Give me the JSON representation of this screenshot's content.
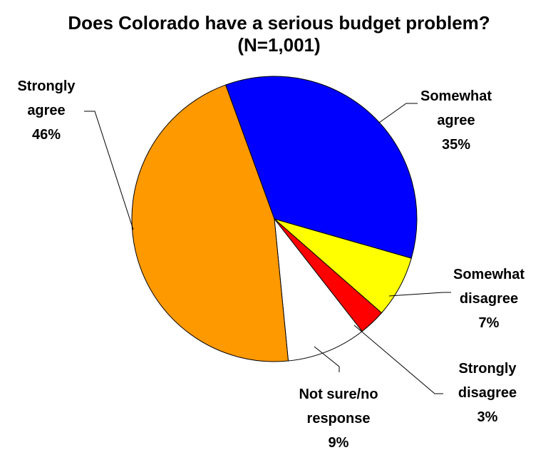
{
  "chart_data": {
    "type": "pie",
    "title": "Does Colorado have a serious budget problem?",
    "subtitle": "(N=1,001)",
    "slices": [
      {
        "lines": [
          "Somewhat",
          "agree"
        ],
        "pct_label": "35%",
        "value": 35,
        "color": "#0000ff"
      },
      {
        "lines": [
          "Somewhat",
          "disagree"
        ],
        "pct_label": "7%",
        "value": 7,
        "color": "#ffff00"
      },
      {
        "lines": [
          "Strongly",
          "disagree"
        ],
        "pct_label": "3%",
        "value": 3,
        "color": "#ff0000"
      },
      {
        "lines": [
          "Not sure/no",
          "response"
        ],
        "pct_label": "9%",
        "value": 9,
        "color": "#ffffff"
      },
      {
        "lines": [
          "Strongly",
          "agree"
        ],
        "pct_label": "46%",
        "value": 46,
        "color": "#ff9900"
      }
    ],
    "start_angle_deg": -20,
    "direction": "clockwise"
  }
}
